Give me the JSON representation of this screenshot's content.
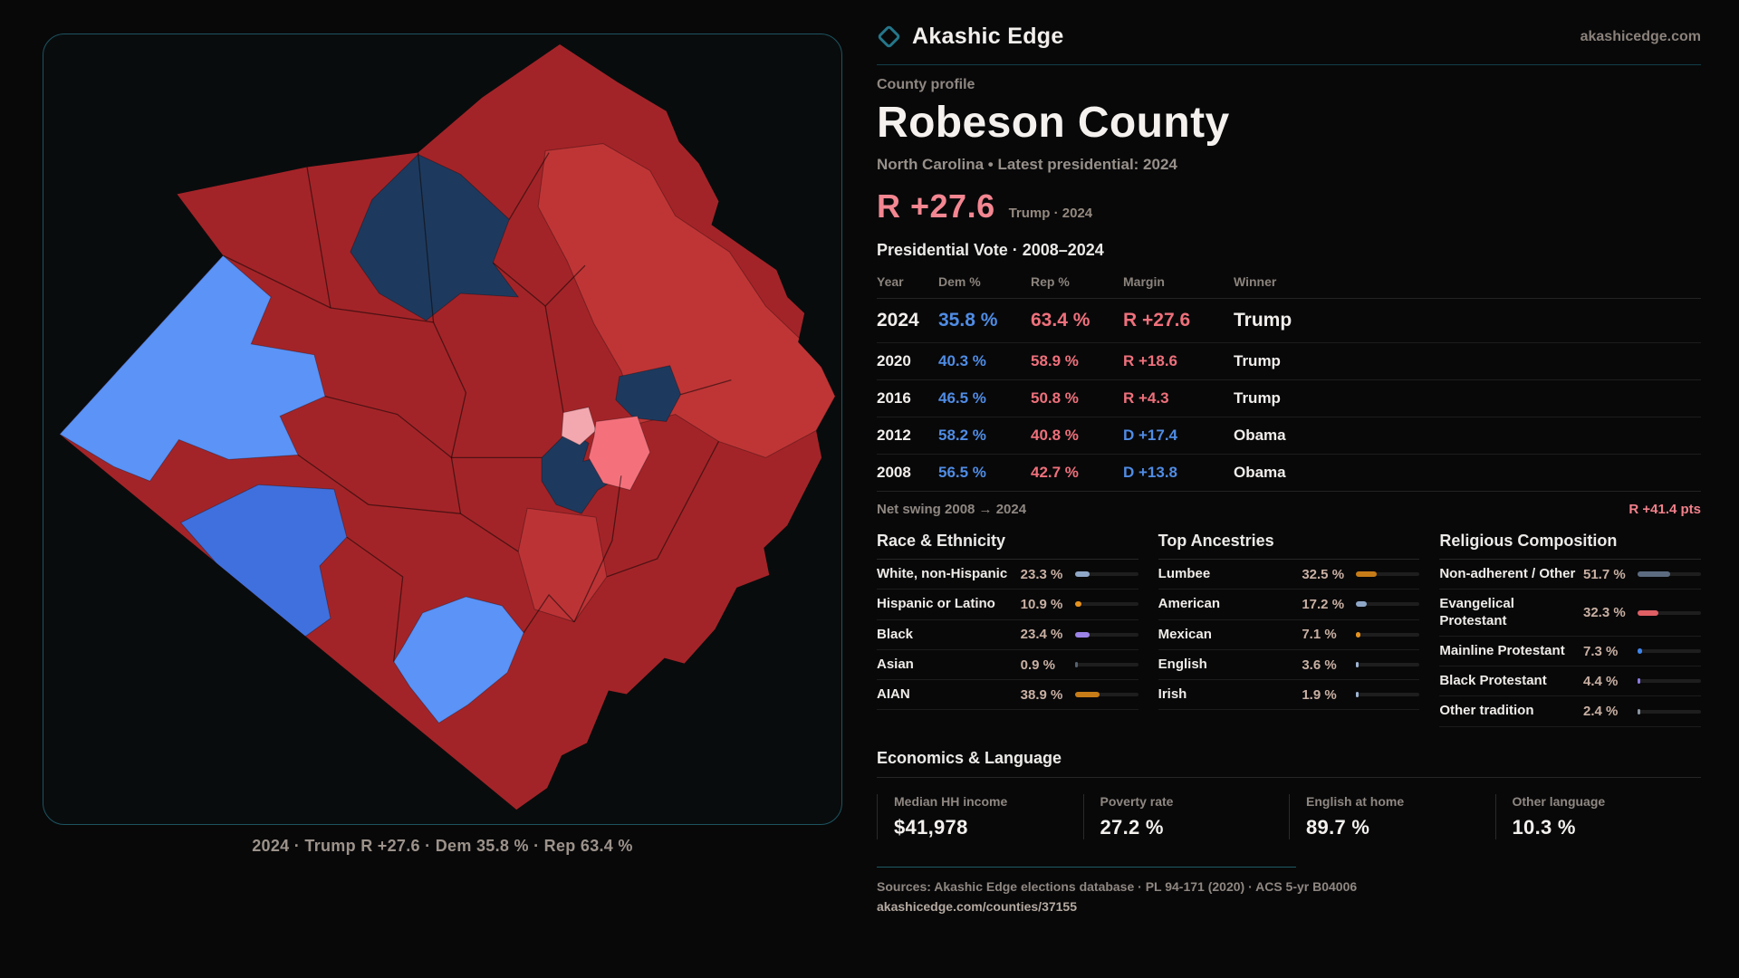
{
  "brand": {
    "name": "Akashic Edge",
    "domain": "akashicedge.com"
  },
  "header": {
    "eyebrow": "County profile",
    "title": "Robeson County",
    "subtitle": "North Carolina • Latest presidential: 2024"
  },
  "headline_margin": {
    "value": "R +27.6",
    "note": "Trump · 2024"
  },
  "vote_table": {
    "heading": "Presidential Vote · 2008–2024",
    "columns": [
      "Year",
      "Dem %",
      "Rep %",
      "Margin",
      "Winner"
    ],
    "rows": [
      {
        "year": "2024",
        "dem": "35.8 %",
        "rep": "63.4 %",
        "margin": "R +27.6",
        "side": "R",
        "winner": "Trump",
        "latest": true
      },
      {
        "year": "2020",
        "dem": "40.3 %",
        "rep": "58.9 %",
        "margin": "R +18.6",
        "side": "R",
        "winner": "Trump",
        "latest": false
      },
      {
        "year": "2016",
        "dem": "46.5 %",
        "rep": "50.8 %",
        "margin": "R +4.3",
        "side": "R",
        "winner": "Trump",
        "latest": false
      },
      {
        "year": "2012",
        "dem": "58.2 %",
        "rep": "40.8 %",
        "margin": "D +17.4",
        "side": "D",
        "winner": "Obama",
        "latest": false
      },
      {
        "year": "2008",
        "dem": "56.5 %",
        "rep": "42.7 %",
        "margin": "D +13.8",
        "side": "D",
        "winner": "Obama",
        "latest": false
      }
    ],
    "net_swing_label": "Net swing 2008 → 2024",
    "net_swing_value": "R +41.4 pts"
  },
  "demographics": {
    "sections": [
      {
        "title": "Race & Ethnicity",
        "rows": [
          {
            "label": "White, non-Hispanic",
            "value": "23.3 %",
            "pct": 23.3,
            "color": "#8fa7c7"
          },
          {
            "label": "Hispanic or Latino",
            "value": "10.9 %",
            "pct": 10.9,
            "color": "#e5921e"
          },
          {
            "label": "Black",
            "value": "23.4 %",
            "pct": 23.4,
            "color": "#9b82e8"
          },
          {
            "label": "Asian",
            "value": "0.9 %",
            "pct": 0.9,
            "color": "#55606e"
          },
          {
            "label": "AIAN",
            "value": "38.9 %",
            "pct": 38.9,
            "color": "#c77c17"
          }
        ]
      },
      {
        "title": "Top Ancestries",
        "rows": [
          {
            "label": "Lumbee",
            "value": "32.5 %",
            "pct": 32.5,
            "color": "#c77c17"
          },
          {
            "label": "American",
            "value": "17.2 %",
            "pct": 17.2,
            "color": "#8fa7c7"
          },
          {
            "label": "Mexican",
            "value": "7.1 %",
            "pct": 7.1,
            "color": "#e5921e"
          },
          {
            "label": "English",
            "value": "3.6 %",
            "pct": 3.6,
            "color": "#9fb5d1"
          },
          {
            "label": "Irish",
            "value": "1.9 %",
            "pct": 1.9,
            "color": "#9fb5d1"
          }
        ]
      },
      {
        "title": "Religious Composition",
        "rows": [
          {
            "label": "Non-adherent / Other",
            "value": "51.7 %",
            "pct": 51.7,
            "color": "#5c6b80"
          },
          {
            "label": "Evangelical Protestant",
            "value": "32.3 %",
            "pct": 32.3,
            "color": "#df5f64"
          },
          {
            "label": "Mainline Protestant",
            "value": "7.3 %",
            "pct": 7.3,
            "color": "#3d84ea"
          },
          {
            "label": "Black Protestant",
            "value": "4.4 %",
            "pct": 4.4,
            "color": "#8a79e0"
          },
          {
            "label": "Other tradition",
            "value": "2.4 %",
            "pct": 2.4,
            "color": "#8b949e"
          }
        ]
      }
    ]
  },
  "economics": {
    "title": "Economics & Language",
    "stats": [
      {
        "label": "Median HH income",
        "value": "$41,978"
      },
      {
        "label": "Poverty rate",
        "value": "27.2 %"
      },
      {
        "label": "English at home",
        "value": "89.7 %"
      },
      {
        "label": "Other language",
        "value": "10.3 %"
      }
    ]
  },
  "map": {
    "caption": "2024 · Trump R +27.6 · Dem 35.8 % · Rep 63.4 %"
  },
  "footer": {
    "sources": "Sources: Akashic Edge elections database · PL 94-171 (2020) · ACS 5-yr B04006",
    "url": "akashicedge.com/counties/37155"
  },
  "colors": {
    "accent_dem": "#4f8ce4",
    "accent_rep": "#ee707b",
    "headline_margin": "#f38691",
    "net_swing": "#f2808a",
    "teal_border": "#1c5460",
    "map_dark_red": "#a32428",
    "map_light_red": "#bf3536",
    "map_bright_blue": "#5b93f7",
    "map_royal_blue": "#4070dd",
    "map_navy": "#1d3a5e",
    "map_pink": "#f3a8b0",
    "map_salmon": "#f4717c"
  }
}
